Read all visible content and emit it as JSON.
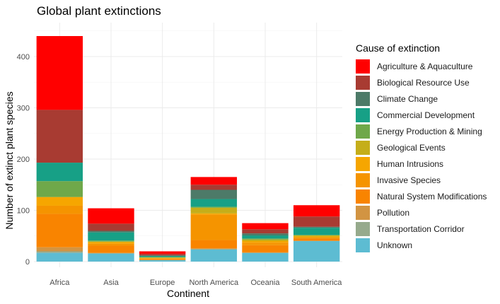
{
  "chart_data": {
    "type": "bar",
    "stacked": true,
    "title": "Global plant extinctions",
    "xlabel": "Continent",
    "ylabel": "Number of extinct plant species",
    "categories": [
      "Africa",
      "Asia",
      "Europe",
      "North America",
      "Oceania",
      "South America"
    ],
    "ylim": [
      0,
      465
    ],
    "yticks": [
      0,
      100,
      200,
      300,
      400
    ],
    "grid": true,
    "legend_title": "Cause of extinction",
    "legend_position": "right",
    "series": [
      {
        "name": "Agriculture & Aquaculture",
        "color": "#FF0000",
        "values": [
          144,
          30,
          5,
          15,
          12,
          22
        ]
      },
      {
        "name": "Biological Resource Use",
        "color": "#A83B32",
        "values": [
          103,
          14,
          3,
          10,
          8,
          20
        ]
      },
      {
        "name": "Climate Change",
        "color": "#4D7A68",
        "values": [
          0,
          3,
          1,
          18,
          4,
          2
        ]
      },
      {
        "name": "Commercial Development",
        "color": "#17A086",
        "values": [
          36,
          16,
          2,
          15,
          6,
          14
        ]
      },
      {
        "name": "Energy Production & Mining",
        "color": "#6FA84A",
        "values": [
          31,
          2,
          1,
          2,
          2,
          1
        ]
      },
      {
        "name": "Geological Events",
        "color": "#C5AE1A",
        "values": [
          0,
          1,
          1,
          11,
          3,
          2
        ]
      },
      {
        "name": "Human Intrusions",
        "color": "#F6A600",
        "values": [
          17,
          3,
          1,
          2,
          3,
          2
        ]
      },
      {
        "name": "Invasive Species",
        "color": "#F59400",
        "values": [
          16,
          4,
          1,
          50,
          5,
          2
        ]
      },
      {
        "name": "Natural System Modifications",
        "color": "#F98400",
        "values": [
          65,
          14,
          2,
          16,
          14,
          4
        ]
      },
      {
        "name": "Pollution",
        "color": "#D29442",
        "values": [
          8,
          1,
          0,
          2,
          1,
          1
        ]
      },
      {
        "name": "Transportation Corridor",
        "color": "#96AA8C",
        "values": [
          3,
          0,
          0,
          0,
          0,
          0
        ]
      },
      {
        "name": "Unknown",
        "color": "#5DBCD2",
        "values": [
          17,
          16,
          3,
          24,
          17,
          40
        ]
      }
    ]
  }
}
